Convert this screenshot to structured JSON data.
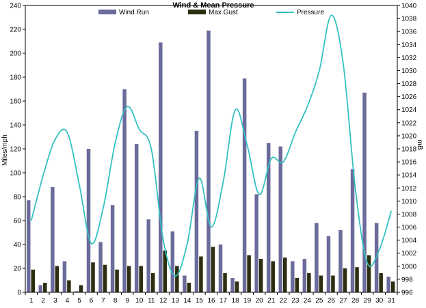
{
  "chart_data": {
    "type": "bar+line",
    "title": "Wind & Mean Pressure",
    "ylabel_left": "Miles/mph",
    "ylabel_right": "mB",
    "x": [
      1,
      2,
      3,
      4,
      5,
      6,
      7,
      8,
      9,
      10,
      11,
      12,
      13,
      14,
      15,
      16,
      17,
      18,
      19,
      20,
      21,
      22,
      23,
      24,
      25,
      26,
      27,
      28,
      29,
      30,
      31
    ],
    "ylim_left": [
      0,
      240
    ],
    "yticks_left": [
      0,
      20,
      40,
      60,
      80,
      100,
      120,
      140,
      160,
      180,
      200,
      220,
      240
    ],
    "ylim_right": [
      996,
      1040
    ],
    "yticks_right": [
      996,
      998,
      1000,
      1002,
      1004,
      1006,
      1008,
      1010,
      1012,
      1014,
      1016,
      1018,
      1020,
      1022,
      1024,
      1026,
      1028,
      1030,
      1032,
      1034,
      1036,
      1038,
      1040
    ],
    "legend_position": "top",
    "series": [
      {
        "name": "Wind Run",
        "type": "bar",
        "axis": "left",
        "color": "#6b6b9c",
        "values": [
          77,
          6,
          88,
          26,
          1,
          120,
          42,
          73,
          170,
          124,
          61,
          209,
          51,
          14,
          135,
          219,
          40,
          12,
          179,
          82,
          125,
          122,
          26,
          28,
          58,
          47,
          52,
          103,
          167,
          58,
          13
        ]
      },
      {
        "name": "Max Gust",
        "type": "bar",
        "axis": "left",
        "color": "#2b2f0f",
        "values": [
          19,
          8,
          22,
          10,
          6,
          25,
          23,
          19,
          22,
          22,
          16,
          35,
          22,
          8,
          30,
          38,
          16,
          9,
          31,
          28,
          26,
          29,
          12,
          16,
          14,
          14,
          20,
          21,
          31,
          16,
          9
        ]
      },
      {
        "name": "Pressure",
        "type": "line",
        "axis": "right",
        "color": "#33c0c0",
        "values": [
          1007,
          1014,
          1019.5,
          1020.5,
          1012.5,
          1003.5,
          1009,
          1019,
          1024.5,
          1021,
          1018,
          1004,
          998.5,
          1003.5,
          1013.5,
          1006,
          1013,
          1024,
          1018.5,
          1011,
          1016.5,
          1016,
          1020.5,
          1024.5,
          1030,
          1038.5,
          1031,
          1012,
          1000.5,
          1002.5,
          1008.5
        ]
      }
    ]
  }
}
